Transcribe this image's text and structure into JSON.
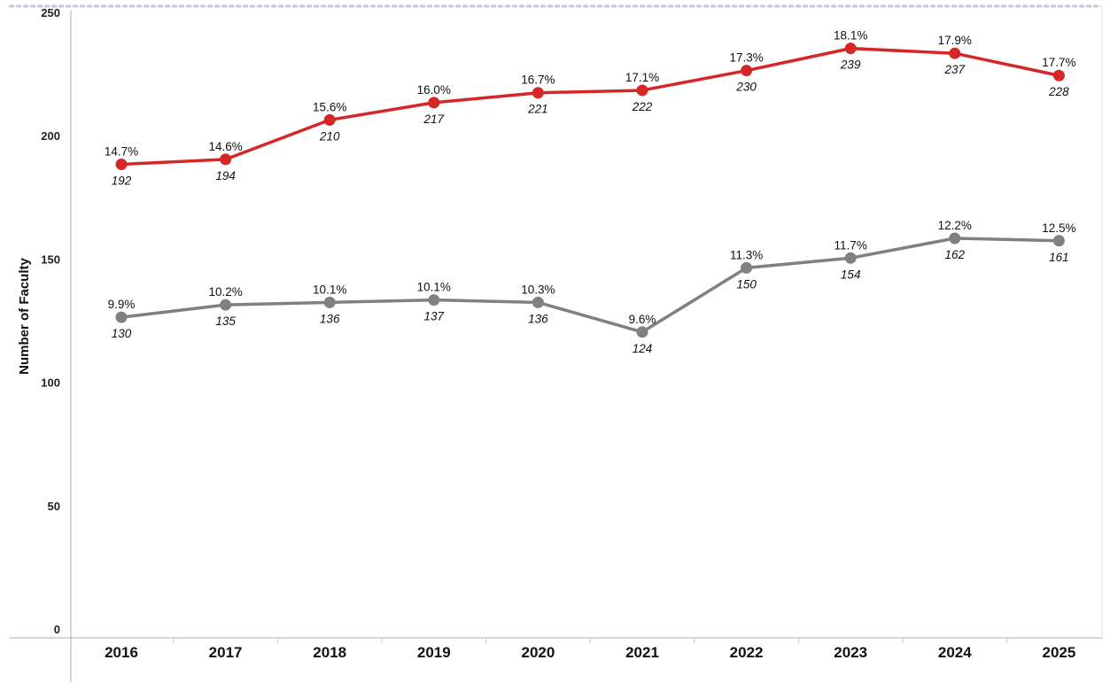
{
  "chart_data": {
    "type": "line",
    "ylabel": "Number of Faculty",
    "xlabel": "",
    "ylim": [
      0,
      250
    ],
    "yticks": [
      "0",
      "50",
      "100",
      "150",
      "200",
      "250"
    ],
    "grid": false,
    "x": [
      "2016",
      "2017",
      "2018",
      "2019",
      "2020",
      "2021",
      "2022",
      "2023",
      "2024",
      "2025"
    ],
    "series": [
      {
        "color": "#d62728",
        "values": [
          192,
          194,
          210,
          217,
          221,
          222,
          230,
          239,
          237,
          228
        ],
        "value_labels": [
          "192",
          "194",
          "210",
          "217",
          "221",
          "222",
          "230",
          "239",
          "237",
          "228"
        ],
        "percent_labels": [
          "14.7%",
          "14.6%",
          "15.6%",
          "16.0%",
          "16.7%",
          "17.1%",
          "17.3%",
          "18.1%",
          "17.9%",
          "17.7%"
        ]
      },
      {
        "color": "#808080",
        "values": [
          130,
          135,
          136,
          137,
          136,
          124,
          150,
          154,
          162,
          161
        ],
        "value_labels": [
          "130",
          "135",
          "136",
          "137",
          "136",
          "124",
          "150",
          "154",
          "162",
          "161"
        ],
        "percent_labels": [
          "9.9%",
          "10.2%",
          "10.1%",
          "10.1%",
          "10.3%",
          "9.6%",
          "11.3%",
          "11.7%",
          "12.2%",
          "12.5%"
        ]
      }
    ]
  }
}
